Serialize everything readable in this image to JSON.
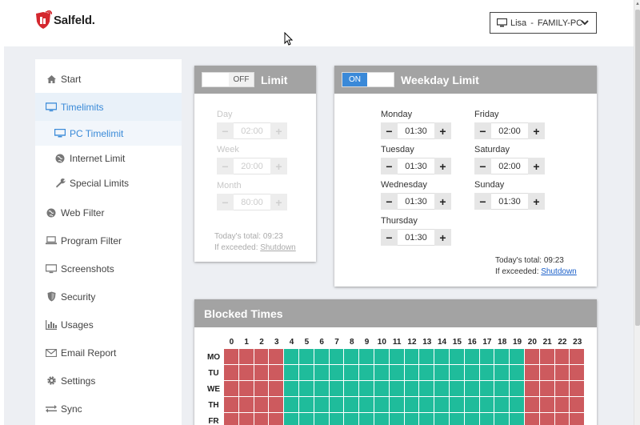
{
  "brand": {
    "name": "Salfeld."
  },
  "user_select": {
    "user": "Lisa",
    "separator": "-",
    "computer": "FAMILY-PC"
  },
  "sidebar": {
    "items": [
      {
        "label": "Start",
        "icon": "home-icon"
      },
      {
        "label": "Timelimits",
        "icon": "monitor-icon"
      },
      {
        "label": "PC Timelimit",
        "icon": "monitor-icon"
      },
      {
        "label": "Internet Limit",
        "icon": "globe-icon"
      },
      {
        "label": "Special Limits",
        "icon": "wrench-icon"
      },
      {
        "label": "Web Filter",
        "icon": "globe-icon"
      },
      {
        "label": "Program Filter",
        "icon": "laptop-icon"
      },
      {
        "label": "Screenshots",
        "icon": "monitor-icon"
      },
      {
        "label": "Security",
        "icon": "shield-icon"
      },
      {
        "label": "Usages",
        "icon": "bar-chart-icon"
      },
      {
        "label": "Email Report",
        "icon": "envelope-icon"
      },
      {
        "label": "Settings",
        "icon": "gear-icon"
      },
      {
        "label": "Sync",
        "icon": "sync-icon"
      }
    ]
  },
  "limit": {
    "title": "Limit",
    "toggle": "OFF",
    "fields": [
      {
        "label": "Day",
        "value": "02:00"
      },
      {
        "label": "Week",
        "value": "20:00"
      },
      {
        "label": "Month",
        "value": "80:00"
      }
    ],
    "total_label": "Today's total: 09:23",
    "exceeded_label": "If exceeded:",
    "exceeded_action": "Shutdown"
  },
  "weekday": {
    "title": "Weekday Limit",
    "toggle": "ON",
    "days": [
      {
        "label": "Monday",
        "value": "01:30"
      },
      {
        "label": "Tuesday",
        "value": "01:30"
      },
      {
        "label": "Wednesday",
        "value": "01:30"
      },
      {
        "label": "Thursday",
        "value": "01:30"
      },
      {
        "label": "Friday",
        "value": "02:00"
      },
      {
        "label": "Saturday",
        "value": "02:00"
      },
      {
        "label": "Sunday",
        "value": "01:30"
      }
    ],
    "total_label": "Today's total: 09:23",
    "exceeded_label": "If exceeded:",
    "exceeded_action": "Shutdown"
  },
  "blocked": {
    "title": "Blocked Times",
    "hours": [
      "0",
      "1",
      "2",
      "3",
      "4",
      "5",
      "6",
      "7",
      "8",
      "9",
      "10",
      "11",
      "12",
      "13",
      "14",
      "15",
      "16",
      "17",
      "18",
      "19",
      "20",
      "21",
      "22",
      "23"
    ],
    "days": [
      "MO",
      "TU",
      "WE",
      "TH",
      "FR"
    ],
    "blocked_hours": [
      0,
      1,
      2,
      3,
      20,
      21,
      22,
      23
    ],
    "colors": {
      "blocked": "#cd5a5e",
      "allowed": "#1fbc9b"
    }
  },
  "minus": "−",
  "plus": "+"
}
